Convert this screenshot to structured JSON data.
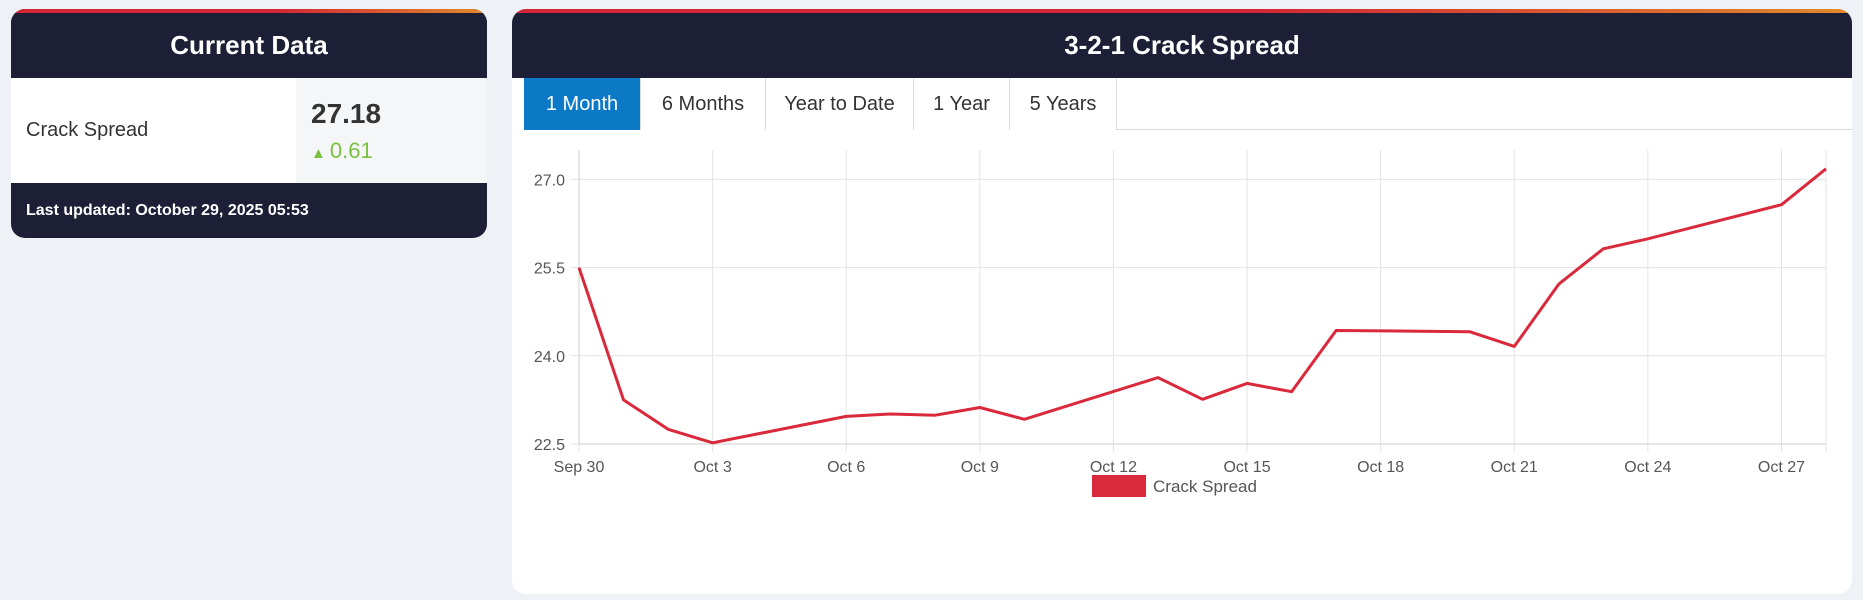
{
  "current_data": {
    "title": "Current Data",
    "label": "Crack Spread",
    "value": "27.18",
    "change": "0.61",
    "change_arrow": "▲",
    "updated": "Last updated: October 29, 2025 05:53"
  },
  "chart_panel": {
    "title": "3-2-1 Crack Spread",
    "tabs": [
      {
        "label": "1 Month",
        "active": true
      },
      {
        "label": "6 Months",
        "active": false
      },
      {
        "label": "Year to Date",
        "active": false
      },
      {
        "label": "1 Year",
        "active": false
      },
      {
        "label": "5 Years",
        "active": false
      }
    ]
  },
  "colors": {
    "header_bg": "#1d1f36",
    "accent_red": "#d32535",
    "accent_orange": "#e08a2b",
    "tab_active": "#0b79c6",
    "positive": "#7cc13e",
    "series": "#d9293a"
  },
  "chart_data": {
    "type": "line",
    "title": "",
    "xlabel": "",
    "ylabel": "",
    "x_ticks": [
      "Sep 30",
      "Oct 3",
      "Oct 6",
      "Oct 9",
      "Oct 12",
      "Oct 15",
      "Oct 18",
      "Oct 21",
      "Oct 24",
      "Oct 27"
    ],
    "x_range": [
      "2025-09-30",
      "2025-10-28"
    ],
    "y_ticks": [
      "22.5",
      "24.0",
      "25.5",
      "27.0"
    ],
    "ylim": [
      22.5,
      27.5
    ],
    "grid": true,
    "legend_position": "bottom",
    "series": [
      {
        "name": "Crack Spread",
        "x": [
          "2025-09-30",
          "2025-10-01",
          "2025-10-02",
          "2025-10-03",
          "2025-10-06",
          "2025-10-07",
          "2025-10-08",
          "2025-10-09",
          "2025-10-10",
          "2025-10-13",
          "2025-10-14",
          "2025-10-15",
          "2025-10-16",
          "2025-10-17",
          "2025-10-20",
          "2025-10-21",
          "2025-10-22",
          "2025-10-23",
          "2025-10-24",
          "2025-10-27",
          "2025-10-28"
        ],
        "y": [
          25.5,
          23.25,
          22.75,
          22.52,
          22.97,
          23.01,
          22.99,
          23.12,
          22.92,
          23.63,
          23.26,
          23.53,
          23.39,
          24.43,
          24.41,
          24.16,
          25.22,
          25.82,
          25.99,
          26.57,
          27.18
        ]
      }
    ]
  }
}
